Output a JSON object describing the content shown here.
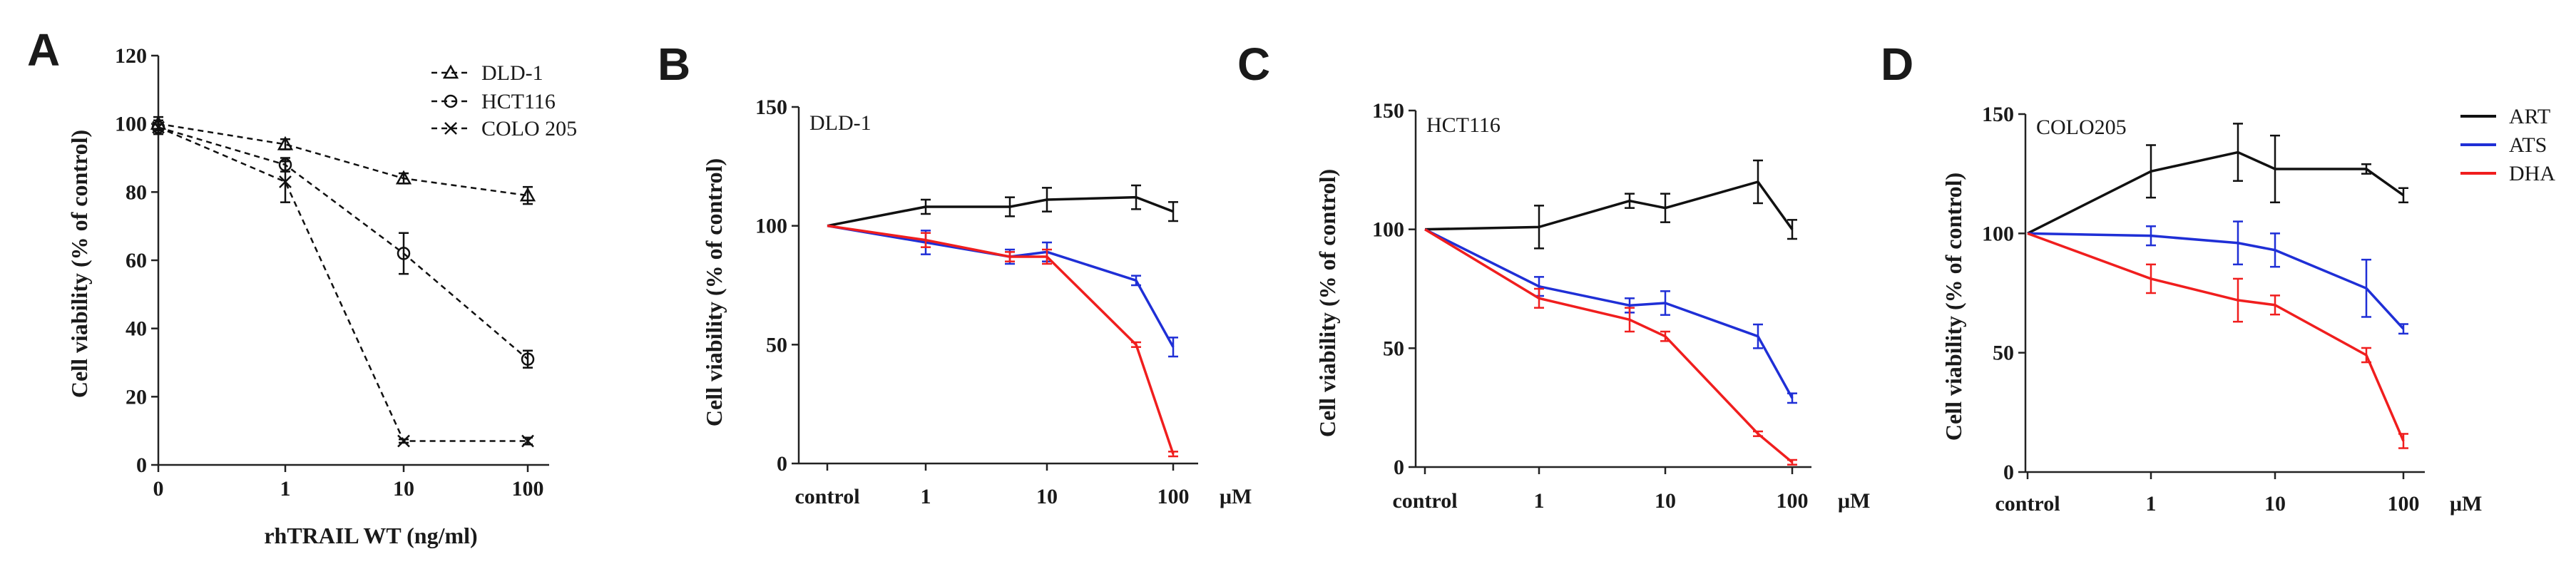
{
  "panels": [
    {
      "letter": "A",
      "chart_data": {
        "type": "line",
        "style": "dashed",
        "categories": [
          "0",
          "1",
          "10",
          "100"
        ],
        "xlabel": "rhTRAIL WT (ng/ml)",
        "ylabel": "Cell viability (% of control)",
        "ylim": [
          0,
          120
        ],
        "yticks": [
          "0",
          "20",
          "40",
          "60",
          "80",
          "100",
          "120"
        ],
        "legend_position": "top-right",
        "series": [
          {
            "name": "DLD-1",
            "marker": "triangle",
            "color": "#111111",
            "values": [
              100,
              94,
              84,
              79
            ],
            "errors": [
              2,
              1.5,
              1.5,
              2.5
            ]
          },
          {
            "name": "HCT116",
            "marker": "circle",
            "color": "#111111",
            "values": [
              99,
              88,
              62,
              31
            ],
            "errors": [
              2,
              2,
              6,
              2.5
            ]
          },
          {
            "name": "COLO 205",
            "marker": "x",
            "color": "#111111",
            "values": [
              99,
              83,
              7,
              7
            ],
            "errors": [
              2,
              6,
              0.5,
              1
            ]
          }
        ]
      }
    },
    {
      "letter": "B",
      "chart_data": {
        "type": "line",
        "title": "DLD-1",
        "categories": [
          "control",
          "1",
          "5",
          "10",
          "50",
          "100"
        ],
        "x_tick_labels": [
          "control",
          "1",
          "10",
          "100"
        ],
        "unit_label": "μM",
        "ylabel": "Cell viability (% of control)",
        "ylim": [
          0,
          150
        ],
        "yticks": [
          "0",
          "50",
          "100",
          "150"
        ],
        "series": [
          {
            "name": "ART",
            "color": "#111111",
            "values": [
              100,
              108,
              108,
              111,
              112,
              106
            ],
            "errors": [
              0,
              3,
              4,
              5,
              5,
              4
            ]
          },
          {
            "name": "ATS",
            "color": "#1f2fd6",
            "values": [
              100,
              93,
              87,
              89,
              77,
              49
            ],
            "errors": [
              0,
              5,
              3,
              4,
              2,
              4
            ]
          },
          {
            "name": "DHA",
            "color": "#f01e1e",
            "values": [
              100,
              94,
              87,
              87,
              50,
              4
            ],
            "errors": [
              0,
              3,
              2,
              3,
              1,
              1
            ]
          }
        ]
      }
    },
    {
      "letter": "C",
      "chart_data": {
        "type": "line",
        "title": "HCT116",
        "categories": [
          "control",
          "1",
          "5",
          "10",
          "50",
          "100"
        ],
        "x_tick_labels": [
          "control",
          "1",
          "10",
          "100"
        ],
        "unit_label": "μM",
        "ylabel": "Cell viability (% of control)",
        "ylim": [
          0,
          150
        ],
        "yticks": [
          "0",
          "50",
          "100",
          "150"
        ],
        "series": [
          {
            "name": "ART",
            "color": "#111111",
            "values": [
              100,
              101,
              112,
              109,
              120,
              100
            ],
            "errors": [
              0,
              9,
              3,
              6,
              9,
              4
            ]
          },
          {
            "name": "ATS",
            "color": "#1f2fd6",
            "values": [
              100,
              76,
              68,
              69,
              55,
              29
            ],
            "errors": [
              0,
              4,
              3,
              5,
              5,
              2
            ]
          },
          {
            "name": "DHA",
            "color": "#f01e1e",
            "values": [
              100,
              71,
              62,
              55,
              14,
              2
            ],
            "errors": [
              0,
              4,
              5,
              2,
              1,
              1
            ]
          }
        ]
      }
    },
    {
      "letter": "D",
      "chart_data": {
        "type": "line",
        "title": "COLO205",
        "categories": [
          "control",
          "1",
          "5",
          "10",
          "50",
          "100"
        ],
        "x_tick_labels": [
          "control",
          "1",
          "10",
          "100"
        ],
        "unit_label": "μM",
        "ylabel": "Cell viability (% of control)",
        "ylim": [
          0,
          150
        ],
        "yticks": [
          "0",
          "50",
          "100",
          "150"
        ],
        "legend_position": "top-right-outside",
        "series": [
          {
            "name": "ART",
            "color": "#111111",
            "values": [
              100,
              126,
              134,
              127,
              127,
              116
            ],
            "errors": [
              0,
              11,
              12,
              14,
              2,
              3
            ]
          },
          {
            "name": "ATS",
            "color": "#1f2fd6",
            "values": [
              100,
              99,
              96,
              93,
              77,
              60
            ],
            "errors": [
              0,
              4,
              9,
              7,
              12,
              2
            ]
          },
          {
            "name": "DHA",
            "color": "#f01e1e",
            "values": [
              100,
              81,
              72,
              70,
              49,
              13
            ],
            "errors": [
              0,
              6,
              9,
              4,
              3,
              3
            ]
          }
        ]
      }
    }
  ]
}
